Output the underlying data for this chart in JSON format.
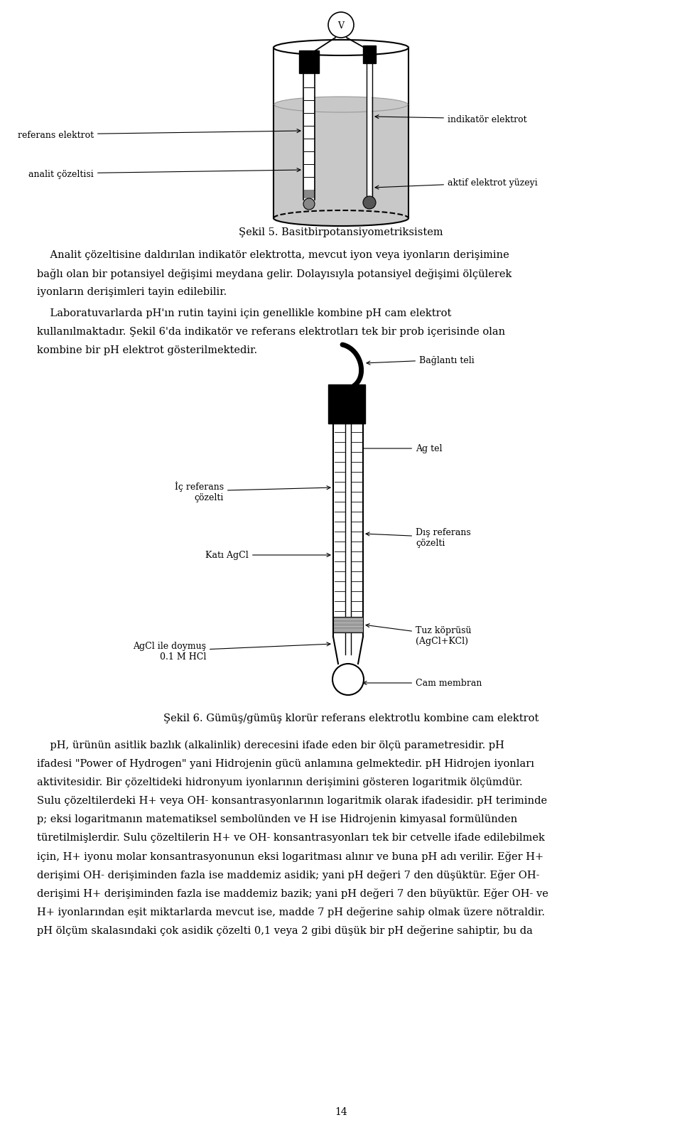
{
  "background_color": "#ffffff",
  "page_width": 9.6,
  "page_height": 16.08,
  "text_color": "#000000",
  "fig1_caption": "Şekil 5. Basitbirpotansiyometriksistem",
  "fig2_caption": "Şekil 6. Gümüş/gümüş klorür referans elektrotlu kombine cam elektrot",
  "para1_lines": [
    "    Analit çözeltisine daldırılan indikatör elektrotta, mevcut iyon veya iyonların derişimine",
    "bağlı olan bir potansiyel değişimi meydana gelir. Dolayısıyla potansiyel değişimi ölçülerek",
    "iyonların derişimleri tayin edilebilir."
  ],
  "para2_lines": [
    "    Laboratuvarlarda pH'ın rutin tayini için genellikle kombine pH cam elektrot",
    "kullanılmaktadır. Şekil 6'da indikatör ve referans elektrotları tek bir prob içerisinde olan",
    "kombine bir pH elektrot gösterilmektedir."
  ],
  "para3_lines": [
    "    pH, ürünün asitlik bazlık (alkalinlik) derecesini ifade eden bir ölçü parametresidir. pH",
    "ifadesi \"Power of Hydrogen\" yani Hidrojenin gücü anlamına gelmektedir. pH Hidrojen iyonları",
    "aktivitesidir. Bir çözeltideki hidronyum iyonlarının derişimini gösteren logaritmik ölçümdür.",
    "Sulu çözeltilerdeki H+ veya OH- konsantrasyonlarının logaritmik olarak ifadesidir. pH teriminde",
    "p; eksi logaritmanın matematiksel sembolünden ve H ise Hidrojenin kimyasal formülünden",
    "türetilmişlerdir. Sulu çözeltilerin H+ ve OH- konsantrasyonları tek bir cetvelle ifade edilebilmek",
    "için, H+ iyonu molar konsantrasyonunun eksi logaritması alınır ve buna pH adı verilir. Eğer H+",
    "derişimi OH- derişiminden fazla ise maddemiz asidik; yani pH değeri 7 den düşüktür. Eğer OH-",
    "derişimi H+ derişiminden fazla ise maddemiz bazik; yani pH değeri 7 den büyüktür. Eğer OH- ve",
    "H+ iyonlarından eşit miktarlarda mevcut ise, madde 7 pH değerine sahip olmak üzere nötraldir.",
    "pH ölçüm skalasındaki çok asidik çözelti 0,1 veya 2 gibi düşük bir pH değerine sahiptir, bu da"
  ],
  "page_number": "14"
}
